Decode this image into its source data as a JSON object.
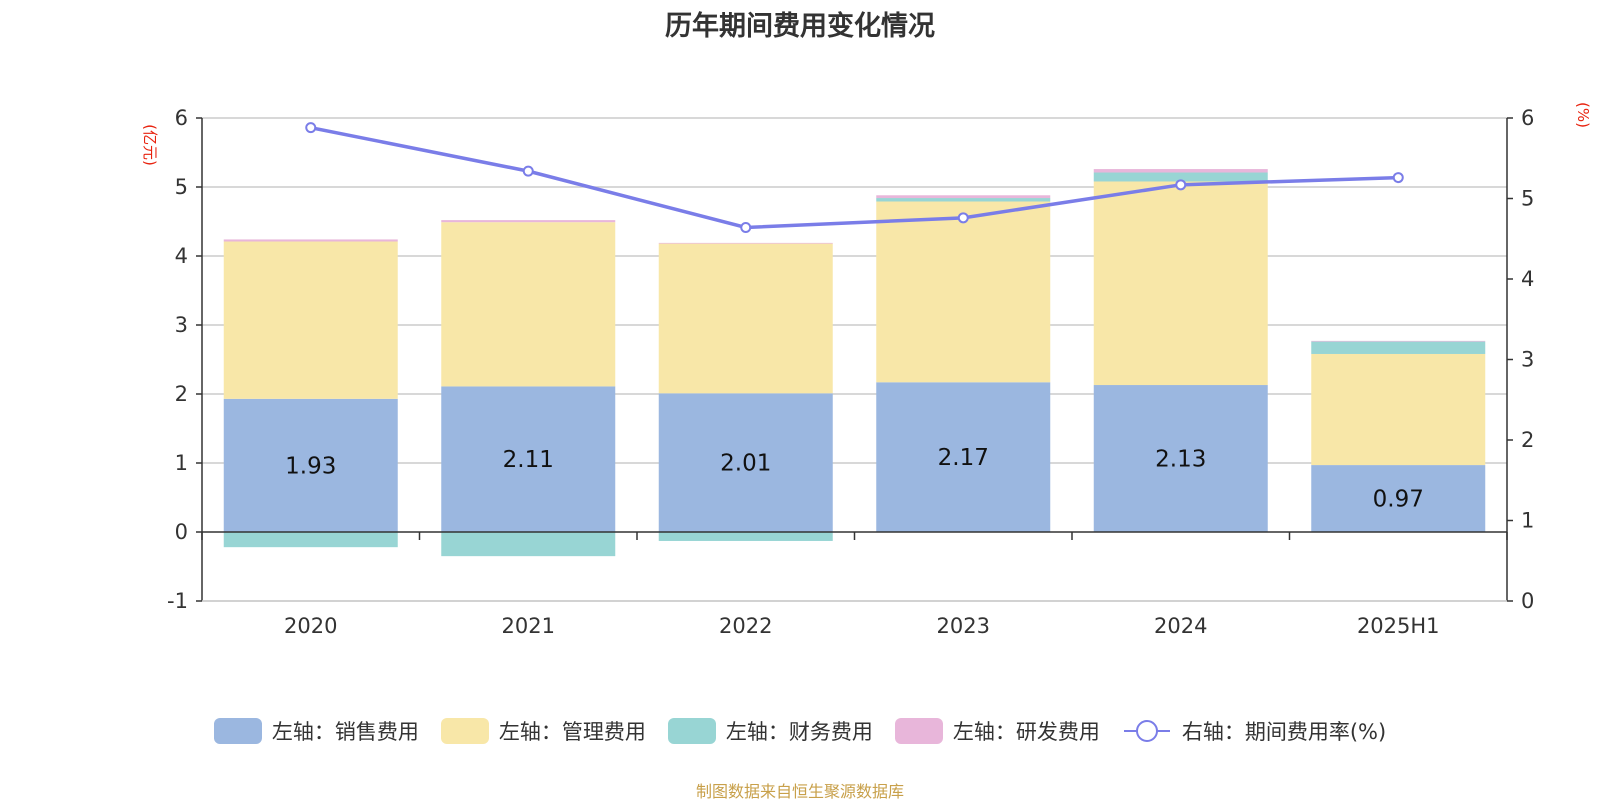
{
  "chart_data": {
    "type": "bar",
    "title": "历年期间费用变化情况",
    "categories": [
      "2020",
      "2021",
      "2022",
      "2023",
      "2024",
      "2025H1"
    ],
    "left_axis": {
      "unit": "(亿元)",
      "ylim": [
        -1,
        6
      ],
      "ticks": [
        -1,
        0,
        1,
        2,
        3,
        4,
        5,
        6
      ]
    },
    "right_axis": {
      "unit": "(%)",
      "ylim": [
        0,
        6
      ],
      "ticks": [
        0,
        1,
        2,
        3,
        4,
        5,
        6
      ]
    },
    "series": [
      {
        "name": "左轴：销售费用",
        "axis": "left",
        "type": "bar",
        "color": "#9bb7e0",
        "values": [
          1.93,
          2.11,
          2.01,
          2.17,
          2.13,
          0.97
        ],
        "labels": [
          "1.93",
          "2.11",
          "2.01",
          "2.17",
          "2.13",
          "0.97"
        ]
      },
      {
        "name": "左轴：管理费用",
        "axis": "left",
        "type": "bar",
        "color": "#f8e7a8",
        "values": [
          2.28,
          2.38,
          2.17,
          2.62,
          2.95,
          1.61
        ]
      },
      {
        "name": "左轴：财务费用",
        "axis": "left",
        "type": "bar",
        "color": "#98d5d4",
        "values": [
          -0.22,
          -0.35,
          -0.13,
          0.05,
          0.13,
          0.18
        ]
      },
      {
        "name": "左轴：研发费用",
        "axis": "left",
        "type": "bar",
        "color": "#e8b6da",
        "values": [
          0.03,
          0.03,
          0.01,
          0.04,
          0.05,
          0.01
        ]
      },
      {
        "name": "右轴：期间费用率(%)",
        "axis": "right",
        "type": "line",
        "color": "#7a7de8",
        "values": [
          5.88,
          5.34,
          4.64,
          4.76,
          5.17,
          5.26
        ]
      }
    ],
    "grid": true,
    "legend": "bottom"
  },
  "source_text": "制图数据来自恒生聚源数据库"
}
